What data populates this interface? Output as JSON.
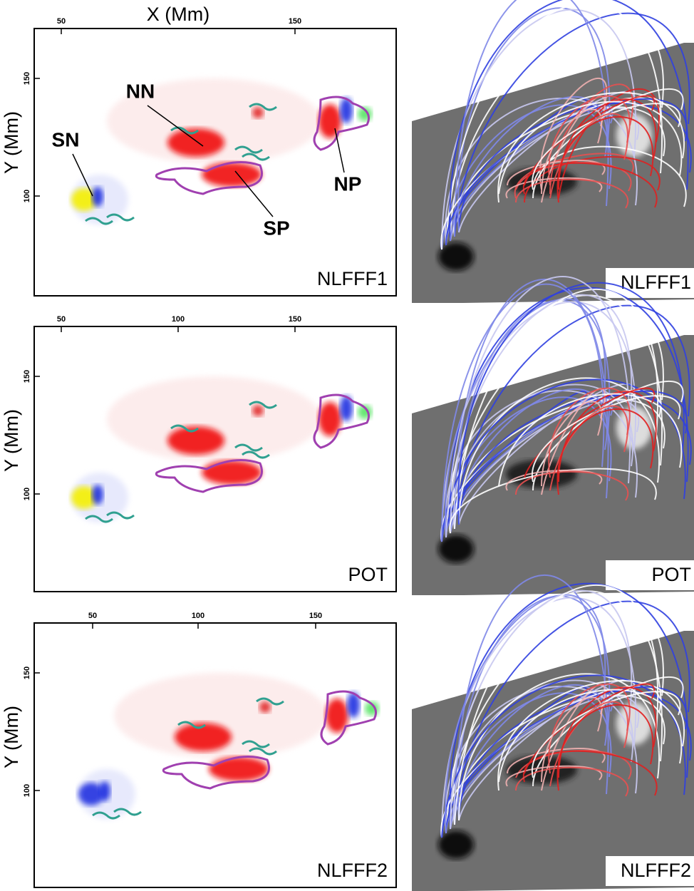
{
  "panels": [
    {
      "x_axis_title": "X (Mm)",
      "x_tick_labels": [
        "50",
        "150"
      ],
      "y_axis_title": "Y (Mm)",
      "y_tick_labels": [
        "150",
        "100"
      ],
      "label": "NLFFF1",
      "annotations": [
        "SN",
        "NN",
        "NP",
        "SP"
      ]
    },
    {
      "x_tick_labels": [
        "50",
        "100",
        "150"
      ],
      "y_axis_title": "Y (Mm)",
      "y_tick_labels": [
        "150",
        "100"
      ],
      "label": "POT"
    },
    {
      "x_tick_labels": [
        "50",
        "100",
        "150"
      ],
      "y_axis_title": "Y (Mm)",
      "y_tick_labels": [
        "150",
        "100"
      ],
      "label": "NLFFF2"
    }
  ],
  "renders": [
    {
      "label": "NLFFF1"
    },
    {
      "label": "POT"
    },
    {
      "label": "NLFFF2"
    }
  ]
}
